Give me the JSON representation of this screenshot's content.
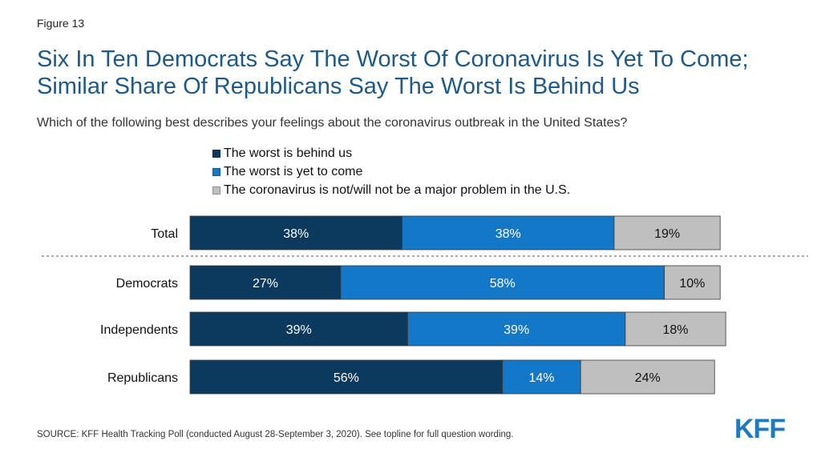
{
  "figure_label": "Figure 13",
  "title": "Six In Ten Democrats Say The Worst Of Coronavirus Is Yet To Come; Similar Share Of Republicans Say The Worst Is Behind Us",
  "subtitle": "Which of the following best describes your feelings about the coronavirus outbreak in the United States?",
  "source": "SOURCE: KFF Health Tracking Poll (conducted August 28-September 3, 2020). See topline for full question wording.",
  "logo_text": "KFF",
  "colors": {
    "worst_behind": "#0b3a5e",
    "worst_yet_to_come": "#1478c8",
    "not_major_problem": "#bfbfbf",
    "title": "#1d5a8a",
    "logo": "#1f7ac0"
  },
  "chart_data": {
    "type": "bar",
    "orientation": "horizontal",
    "stacked": true,
    "categories": [
      "Total",
      "Democrats",
      "Independents",
      "Republicans"
    ],
    "series": [
      {
        "name": "The worst is behind us",
        "values": [
          38,
          27,
          39,
          56
        ],
        "labels": [
          "38%",
          "27%",
          "39%",
          "56%"
        ]
      },
      {
        "name": "The worst is yet to come",
        "values": [
          38,
          58,
          39,
          14
        ],
        "labels": [
          "38%",
          "58%",
          "39%",
          "14%"
        ]
      },
      {
        "name": "The coronavirus is not/will not be a major problem in the U.S.",
        "values": [
          19,
          10,
          18,
          24
        ],
        "labels": [
          "19%",
          "10%",
          "18%",
          "24%"
        ]
      }
    ],
    "xlim": [
      0,
      100
    ],
    "legend_position": "top",
    "separator_after_category": "Total"
  }
}
